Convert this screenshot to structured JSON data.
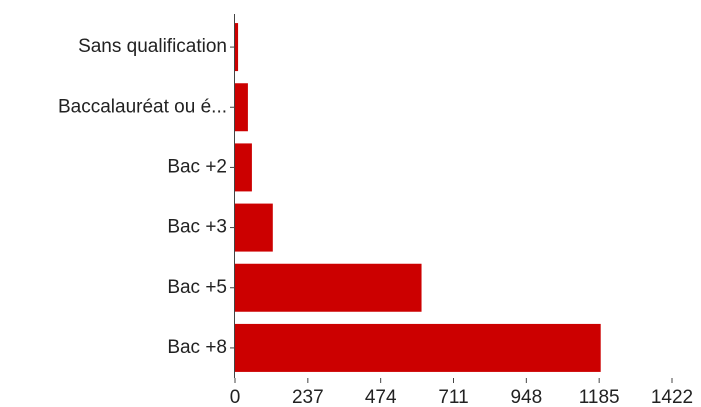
{
  "chart_data": {
    "type": "bar",
    "orientation": "horizontal",
    "categories": [
      "Sans qualification",
      "Baccalauréat ou é...",
      "Bac +2",
      "Bac +3",
      "Bac +5",
      "Bac +8"
    ],
    "values": [
      10,
      42,
      55,
      123,
      607,
      1190
    ],
    "color": "#cc0000",
    "xlim": [
      0,
      1422
    ],
    "xticks": [
      0,
      237,
      474,
      711,
      948,
      1185,
      1422
    ],
    "grid": false
  }
}
